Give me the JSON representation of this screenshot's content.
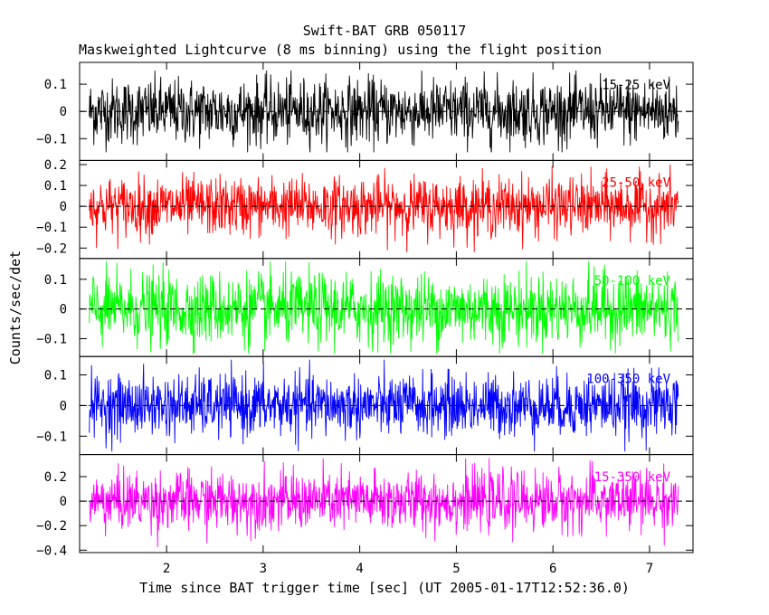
{
  "chart_data": {
    "type": "line",
    "title": "Swift-BAT GRB 050117",
    "subtitle": "Maskweighted Lightcurve (8 ms binning) using the flight position",
    "xlabel": "Time since BAT trigger time [sec] (UT 2005-01-17T12:52:36.0)",
    "ylabel": "Counts/sec/det",
    "xlim": [
      1.1,
      7.45
    ],
    "x_ticks": [
      "2",
      "3",
      "4",
      "5",
      "6",
      "7"
    ],
    "x_tick_values": [
      2,
      3,
      4,
      5,
      6,
      7
    ],
    "data_x_range": [
      1.2,
      7.3
    ],
    "bin_width_sec": 0.008,
    "grid": false,
    "zero_line": "dashed",
    "panels": [
      {
        "name": "15-25 keV",
        "color": "#000000",
        "ylim": [
          -0.18,
          0.18
        ],
        "y_ticks": [
          -0.1,
          0,
          0.1
        ],
        "y_tick_labels": [
          "−0.1",
          "0",
          "0.1"
        ],
        "noise_amplitude": 0.06,
        "value_range": [
          -0.15,
          0.15
        ]
      },
      {
        "name": "25-50 keV",
        "color": "#ff0000",
        "ylim": [
          -0.25,
          0.22
        ],
        "y_ticks": [
          -0.2,
          -0.1,
          0,
          0.1,
          0.2
        ],
        "y_tick_labels": [
          "−0.2",
          "−0.1",
          "0",
          "0.1",
          "0.2"
        ],
        "noise_amplitude": 0.07,
        "value_range": [
          -0.22,
          0.2
        ]
      },
      {
        "name": "50-100 keV",
        "color": "#00ff00",
        "ylim": [
          -0.16,
          0.17
        ],
        "y_ticks": [
          -0.1,
          0,
          0.1
        ],
        "y_tick_labels": [
          "−0.1",
          "0",
          "0.1"
        ],
        "noise_amplitude": 0.06,
        "value_range": [
          -0.15,
          0.16
        ]
      },
      {
        "name": "100-350 keV",
        "color": "#0000ff",
        "ylim": [
          -0.16,
          0.16
        ],
        "y_ticks": [
          -0.1,
          0,
          0.1
        ],
        "y_tick_labels": [
          "−0.1",
          "0",
          "0.1"
        ],
        "noise_amplitude": 0.05,
        "value_range": [
          -0.15,
          0.15
        ]
      },
      {
        "name": "15-350 keV",
        "color": "#ff00ff",
        "ylim": [
          -0.42,
          0.38
        ],
        "y_ticks": [
          -0.4,
          -0.2,
          0,
          0.2
        ],
        "y_tick_labels": [
          "−0.4",
          "−0.2",
          "0",
          "0.2"
        ],
        "noise_amplitude": 0.12,
        "value_range": [
          -0.4,
          0.35
        ]
      }
    ]
  }
}
